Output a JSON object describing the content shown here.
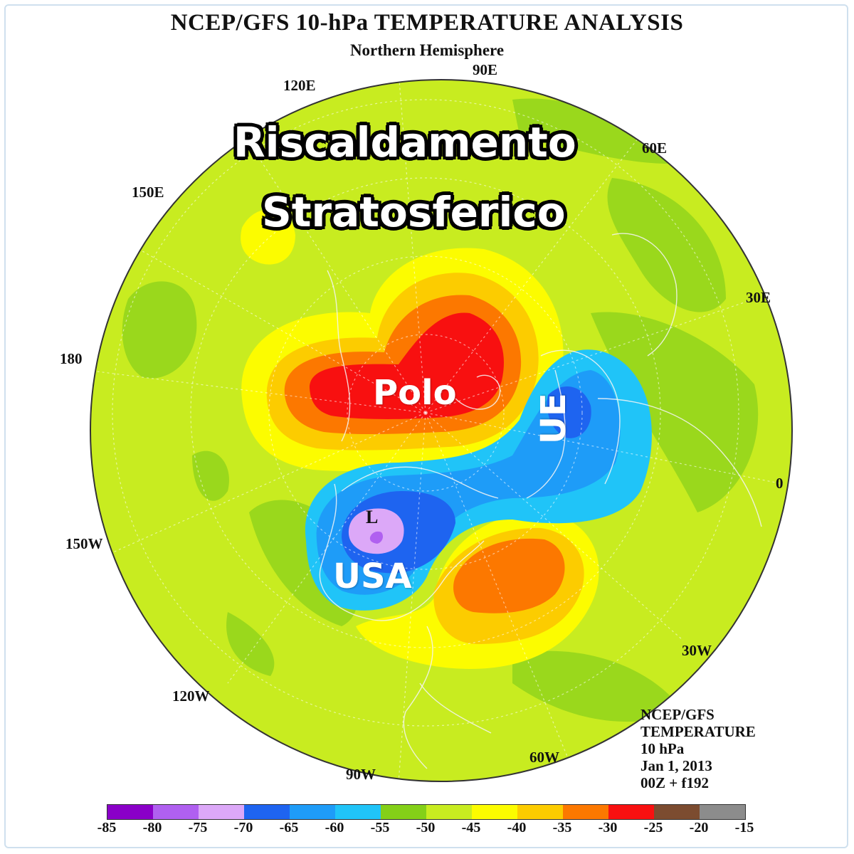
{
  "title": "NCEP/GFS 10-hPa TEMPERATURE ANALYSIS",
  "subtitle": "Northern Hemisphere",
  "longitudes": {
    "e90": "90E",
    "e120": "120E",
    "e60": "60E",
    "e150": "150E",
    "e30": "30E",
    "d180": "180",
    "d0": "0",
    "w150": "150W",
    "w30": "30W",
    "w120": "120W",
    "w90": "90W",
    "w60": "60W"
  },
  "overlay": {
    "headline_1": "Riscaldamento",
    "headline_2": "Stratosferico",
    "polo": "Polo",
    "ue": "UE",
    "usa": "USA",
    "low_marker": "L"
  },
  "info": {
    "line1": "NCEP/GFS",
    "line2": "TEMPERATURE",
    "line3": "10 hPa",
    "line4": "Jan 1, 2013",
    "line5": "00Z + f192"
  },
  "colorbar": {
    "ticks": [
      "-85",
      "-80",
      "-75",
      "-70",
      "-65",
      "-60",
      "-55",
      "-50",
      "-45",
      "-40",
      "-35",
      "-30",
      "-25",
      "-20",
      "-15"
    ],
    "colors": [
      "#8a00c8",
      "#b060f0",
      "#dca8f8",
      "#1e64f0",
      "#1e9cf8",
      "#20c4f8",
      "#84d018",
      "#c8ec20",
      "#fcfc00",
      "#fccc00",
      "#fc7800",
      "#f81010",
      "#7c4c30",
      "#8c8c8c"
    ]
  }
}
